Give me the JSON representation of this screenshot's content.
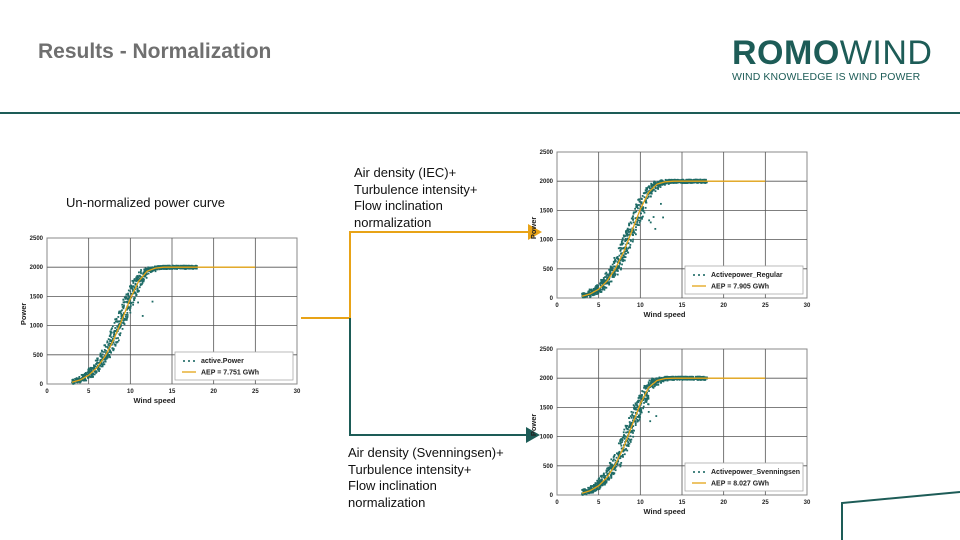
{
  "header": {
    "title": "Results - Normalization"
  },
  "logo": {
    "brand_bold": "ROMO",
    "brand_light": "WIND",
    "tagline": "WIND KNOWLEDGE IS WIND POWER"
  },
  "labels": {
    "left": "Un-normalized power curve",
    "top_right": [
      "Air density (IEC)+",
      "Turbulence intensity+",
      "Flow inclination",
      "normalization"
    ],
    "bottom_right": [
      "Air density (Svenningsen)+",
      "Turbulence intensity+",
      "Flow inclination",
      "normalization"
    ]
  },
  "colors": {
    "accent": "#1d5c57",
    "scatter": "#1e6b66",
    "curve": "#e3a417",
    "arrow": "#1d5c57",
    "connector": "#e8a317"
  },
  "chart_data": [
    {
      "type": "scatter",
      "xlabel": "Wind speed",
      "ylabel": "Power",
      "xlim": [
        0,
        30
      ],
      "ylim": [
        0,
        2500
      ],
      "xticks": [
        0,
        5,
        10,
        15,
        20,
        25,
        30
      ],
      "yticks": [
        0,
        500,
        1000,
        1500,
        2000,
        2500
      ],
      "grid": true,
      "legend_position": "bottom-right",
      "series": [
        {
          "name": "active.Power",
          "kind": "scatter",
          "x_range": [
            3,
            18
          ],
          "rated": 2000
        },
        {
          "name": "AEP = 7.751 GWh",
          "kind": "line",
          "x": [
            3,
            4,
            5,
            6,
            7,
            8,
            9,
            10,
            11,
            12,
            13,
            14,
            15,
            16,
            17,
            18,
            19,
            20,
            21,
            22,
            23,
            24,
            25
          ],
          "y": [
            30,
            70,
            150,
            280,
            480,
            760,
            1100,
            1460,
            1760,
            1930,
            1985,
            2000,
            2000,
            2000,
            2000,
            2000,
            2000,
            2000,
            2000,
            2000,
            2000,
            2000,
            2000
          ]
        }
      ]
    },
    {
      "type": "scatter",
      "xlabel": "Wind speed",
      "ylabel": "Power",
      "xlim": [
        0,
        30
      ],
      "ylim": [
        0,
        2500
      ],
      "xticks": [
        0,
        5,
        10,
        15,
        20,
        25,
        30
      ],
      "yticks": [
        0,
        500,
        1000,
        1500,
        2000,
        2500
      ],
      "grid": true,
      "legend_position": "bottom-right",
      "series": [
        {
          "name": "Activepower_Regular",
          "kind": "scatter",
          "x_range": [
            3,
            18
          ],
          "rated": 2000
        },
        {
          "name": "AEP = 7.905 GWh",
          "kind": "line",
          "x": [
            3,
            4,
            5,
            6,
            7,
            8,
            9,
            10,
            11,
            12,
            13,
            14,
            15,
            16,
            17,
            18,
            19,
            20,
            21,
            22,
            23,
            24,
            25
          ],
          "y": [
            30,
            70,
            150,
            290,
            500,
            790,
            1150,
            1520,
            1810,
            1950,
            1990,
            2000,
            2000,
            2000,
            2000,
            2000,
            2000,
            2000,
            2000,
            2000,
            2000,
            2000,
            2000
          ]
        }
      ]
    },
    {
      "type": "scatter",
      "xlabel": "Wind speed",
      "ylabel": "Power",
      "xlim": [
        0,
        30
      ],
      "ylim": [
        0,
        2500
      ],
      "xticks": [
        0,
        5,
        10,
        15,
        20,
        25,
        30
      ],
      "yticks": [
        0,
        500,
        1000,
        1500,
        2000,
        2500
      ],
      "grid": true,
      "legend_position": "bottom-right",
      "series": [
        {
          "name": "Activepower_Svenningsen",
          "kind": "scatter",
          "x_range": [
            3,
            18
          ],
          "rated": 2000
        },
        {
          "name": "AEP = 8.027 GWh",
          "kind": "line",
          "x": [
            3,
            4,
            5,
            6,
            7,
            8,
            9,
            10,
            11,
            12,
            13,
            14,
            15,
            16,
            17,
            18,
            19,
            20,
            21,
            22,
            23,
            24,
            25
          ],
          "y": [
            30,
            75,
            160,
            300,
            520,
            820,
            1190,
            1560,
            1840,
            1960,
            1995,
            2000,
            2000,
            2000,
            2000,
            2000,
            2000,
            2000,
            2000,
            2000,
            2000,
            2000,
            2000
          ]
        }
      ]
    }
  ]
}
